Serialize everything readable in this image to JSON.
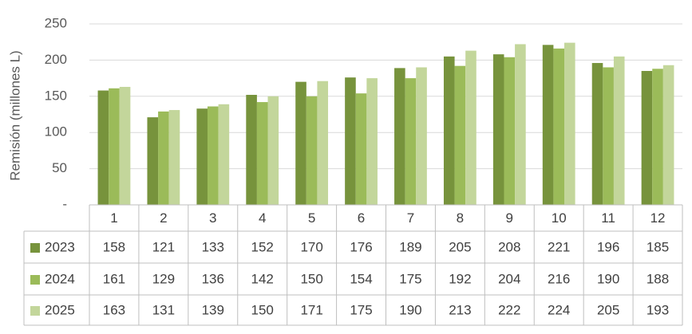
{
  "chart_data": {
    "type": "bar",
    "y_label": "Remisión (millones L)",
    "categories": [
      "1",
      "2",
      "3",
      "4",
      "5",
      "6",
      "7",
      "8",
      "9",
      "10",
      "11",
      "12"
    ],
    "series": [
      {
        "name": "2023",
        "color": "#77933c",
        "values": [
          158,
          121,
          133,
          152,
          170,
          176,
          189,
          205,
          208,
          221,
          196,
          185
        ]
      },
      {
        "name": "2024",
        "color": "#9bbb59",
        "values": [
          161,
          129,
          136,
          142,
          150,
          154,
          175,
          192,
          204,
          216,
          190,
          188
        ]
      },
      {
        "name": "2025",
        "color": "#c3d69b",
        "values": [
          163,
          131,
          139,
          150,
          171,
          175,
          190,
          213,
          222,
          224,
          205,
          193
        ]
      }
    ],
    "ylim": [
      0,
      250
    ],
    "yticks": [
      {
        "value": 0,
        "label": "-"
      },
      50,
      100,
      150,
      200,
      250
    ],
    "grid": true,
    "data_table": true
  }
}
